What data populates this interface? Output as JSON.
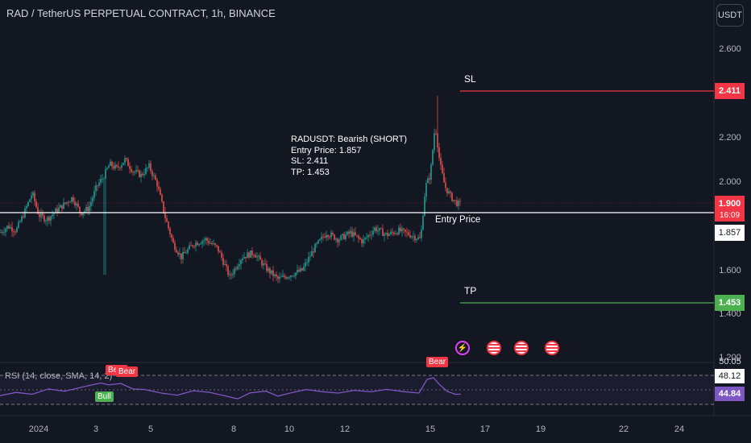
{
  "header": {
    "title": "RAD / TetherUS PERPETUAL CONTRACT, 1h, BINANCE",
    "currency_button": "USDT"
  },
  "colors": {
    "background": "#131722",
    "bull": "#26a69a",
    "bear": "#ef5350",
    "sl_line": "#f23645",
    "tp_line": "#4caf50",
    "entry_line": "#ffffff",
    "rsi_line": "#7e57c2"
  },
  "annotation": {
    "line1": "RADUSDT: Bearish (SHORT)",
    "line2": "Entry Price: 1.857",
    "line3": "SL: 2.411",
    "line4": "TP: 1.453"
  },
  "levels": {
    "sl_label": "SL",
    "tp_label": "TP",
    "entry_label": "Entry Price",
    "sl_value": "2.411",
    "tp_value": "1.453",
    "entry_value": "1.857",
    "last_price": "1.900",
    "countdown": "16:09"
  },
  "price_axis": {
    "ticks": [
      "2.600",
      "2.200",
      "2.000",
      "1.600",
      "1.400",
      "1.200"
    ]
  },
  "time_axis": {
    "ticks": [
      "2024",
      "3",
      "5",
      "8",
      "10",
      "12",
      "15",
      "17",
      "19",
      "22",
      "24"
    ]
  },
  "rsi": {
    "title": "RSI (14, close, SMA, 14, 2)",
    "value_badge": "44.84",
    "sma_value": "48.12",
    "upper_label": "50.05",
    "signals": [
      {
        "label": "Bear",
        "kind": "bear"
      },
      {
        "label": "Bear",
        "kind": "bear"
      },
      {
        "label": "Bull",
        "kind": "bull"
      },
      {
        "label": "Bear",
        "kind": "bear"
      }
    ]
  },
  "events": [
    {
      "icon": "lightning-icon"
    },
    {
      "icon": "us-flag-icon"
    },
    {
      "icon": "us-flag-icon"
    },
    {
      "icon": "us-flag-icon"
    }
  ],
  "chart_data": {
    "type": "candlestick",
    "symbol": "RADUSDT",
    "timeframe": "1h",
    "ylim": [
      1.2,
      2.7
    ],
    "close_path": [
      [
        0,
        1.77
      ],
      [
        10,
        1.8
      ],
      [
        20,
        1.78
      ],
      [
        30,
        1.86
      ],
      [
        40,
        1.95
      ],
      [
        48,
        1.85
      ],
      [
        58,
        1.83
      ],
      [
        70,
        1.87
      ],
      [
        80,
        1.9
      ],
      [
        90,
        1.93
      ],
      [
        100,
        1.86
      ],
      [
        110,
        1.88
      ],
      [
        120,
        1.98
      ],
      [
        128,
        2.02
      ],
      [
        136,
        2.08
      ],
      [
        145,
        2.06
      ],
      [
        155,
        2.1
      ],
      [
        165,
        2.05
      ],
      [
        175,
        2.03
      ],
      [
        185,
        2.07
      ],
      [
        195,
        1.99
      ],
      [
        205,
        1.84
      ],
      [
        215,
        1.72
      ],
      [
        225,
        1.66
      ],
      [
        240,
        1.72
      ],
      [
        255,
        1.74
      ],
      [
        270,
        1.7
      ],
      [
        285,
        1.57
      ],
      [
        300,
        1.66
      ],
      [
        315,
        1.68
      ],
      [
        330,
        1.61
      ],
      [
        345,
        1.56
      ],
      [
        360,
        1.58
      ],
      [
        375,
        1.6
      ],
      [
        390,
        1.7
      ],
      [
        405,
        1.77
      ],
      [
        420,
        1.74
      ],
      [
        435,
        1.77
      ],
      [
        450,
        1.73
      ],
      [
        465,
        1.79
      ],
      [
        480,
        1.76
      ],
      [
        495,
        1.78
      ],
      [
        510,
        1.76
      ],
      [
        522,
        1.74
      ],
      [
        528,
        1.98
      ],
      [
        534,
        2.03
      ],
      [
        540,
        2.26
      ],
      [
        546,
        2.08
      ],
      [
        552,
        1.98
      ],
      [
        560,
        1.93
      ],
      [
        568,
        1.9
      ],
      [
        572,
        1.9
      ]
    ],
    "spikes": [
      {
        "x": 130,
        "low": 1.58
      },
      {
        "x": 543,
        "high": 2.39
      }
    ],
    "rsi_path": [
      [
        0,
        44
      ],
      [
        20,
        46
      ],
      [
        40,
        45
      ],
      [
        60,
        49
      ],
      [
        80,
        47
      ],
      [
        100,
        50
      ],
      [
        110,
        51
      ],
      [
        125,
        53
      ],
      [
        135,
        51
      ],
      [
        150,
        52
      ],
      [
        165,
        49
      ],
      [
        180,
        48
      ],
      [
        200,
        46
      ],
      [
        220,
        44
      ],
      [
        240,
        47
      ],
      [
        260,
        46
      ],
      [
        280,
        44
      ],
      [
        295,
        42
      ],
      [
        310,
        46
      ],
      [
        330,
        47
      ],
      [
        345,
        44
      ],
      [
        360,
        46
      ],
      [
        380,
        48
      ],
      [
        400,
        47
      ],
      [
        420,
        46
      ],
      [
        440,
        48
      ],
      [
        460,
        47
      ],
      [
        480,
        48
      ],
      [
        500,
        47
      ],
      [
        520,
        46
      ],
      [
        530,
        55
      ],
      [
        538,
        56
      ],
      [
        545,
        52
      ],
      [
        555,
        47
      ],
      [
        565,
        45
      ],
      [
        572,
        45
      ]
    ],
    "rsi_ylim": [
      38,
      58
    ]
  }
}
